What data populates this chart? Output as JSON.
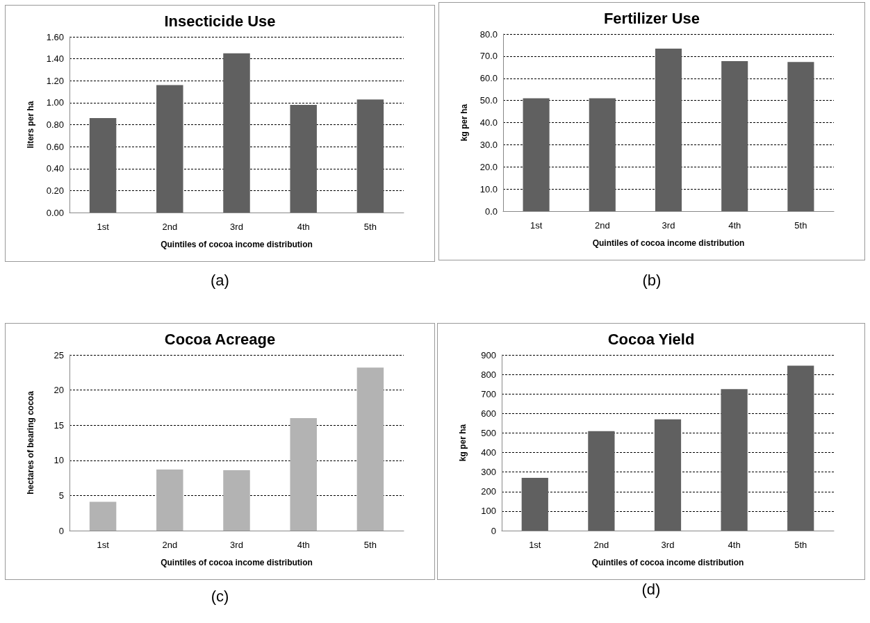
{
  "chart_data": [
    {
      "type": "bar",
      "title": "Insecticide Use",
      "xlabel": "Quintiles of cocoa income distribution",
      "ylabel": "liters per ha",
      "categories": [
        "1st",
        "2nd",
        "3rd",
        "4th",
        "5th"
      ],
      "values": [
        0.86,
        1.16,
        1.45,
        0.98,
        1.03
      ],
      "color": "#606060",
      "ylim": [
        0,
        1.6
      ],
      "yticks": [
        {
          "value": 0,
          "label": "0.00"
        },
        {
          "value": 0.2,
          "label": "0.20"
        },
        {
          "value": 0.4,
          "label": "0.40"
        },
        {
          "value": 0.6,
          "label": "0.60"
        },
        {
          "value": 0.8,
          "label": "0.80"
        },
        {
          "value": 1,
          "label": "1.00"
        },
        {
          "value": 1.2,
          "label": "1.20"
        },
        {
          "value": 1.4,
          "label": "1.40"
        },
        {
          "value": 1.6,
          "label": "1.60"
        }
      ],
      "grid": "y",
      "annotations": [
        "(a)"
      ]
    },
    {
      "type": "bar",
      "title": "Fertilizer Use",
      "xlabel": "Quintiles of cocoa income distribution",
      "ylabel": "kg per ha",
      "categories": [
        "1st",
        "2nd",
        "3rd",
        "4th",
        "5th"
      ],
      "values": [
        51.0,
        51.0,
        73.4,
        67.8,
        67.4
      ],
      "color": "#606060",
      "ylim": [
        0,
        80
      ],
      "yticks": [
        {
          "value": 0,
          "label": "0.0"
        },
        {
          "value": 10,
          "label": "10.0"
        },
        {
          "value": 20,
          "label": "20.0"
        },
        {
          "value": 30,
          "label": "30.0"
        },
        {
          "value": 40,
          "label": "40.0"
        },
        {
          "value": 50,
          "label": "50.0"
        },
        {
          "value": 60,
          "label": "60.0"
        },
        {
          "value": 70,
          "label": "70.0"
        },
        {
          "value": 80,
          "label": "80.0"
        }
      ],
      "grid": "y",
      "annotations": [
        "(b)"
      ]
    },
    {
      "type": "bar",
      "title": "Cocoa Acreage",
      "xlabel": "Quintiles of cocoa income distribution",
      "ylabel": "hectares of bearing cocoa",
      "categories": [
        "1st",
        "2nd",
        "3rd",
        "4th",
        "5th"
      ],
      "values": [
        4.1,
        8.7,
        8.6,
        16.0,
        23.2
      ],
      "color": "#b3b3b3",
      "ylim": [
        0,
        25
      ],
      "yticks": [
        0,
        5,
        10,
        15,
        20,
        25
      ],
      "grid": "y",
      "annotations": [
        "(c)"
      ]
    },
    {
      "type": "bar",
      "title": "Cocoa Yield",
      "xlabel": "Quintiles of cocoa income distribution",
      "ylabel": "kg per ha",
      "categories": [
        "1st",
        "2nd",
        "3rd",
        "4th",
        "5th"
      ],
      "values": [
        270,
        510,
        570,
        725,
        845
      ],
      "color": "#606060",
      "ylim": [
        0,
        900
      ],
      "yticks": [
        0,
        100,
        200,
        300,
        400,
        500,
        600,
        700,
        800,
        900
      ],
      "grid": "y",
      "annotations": [
        "(d)"
      ]
    }
  ]
}
